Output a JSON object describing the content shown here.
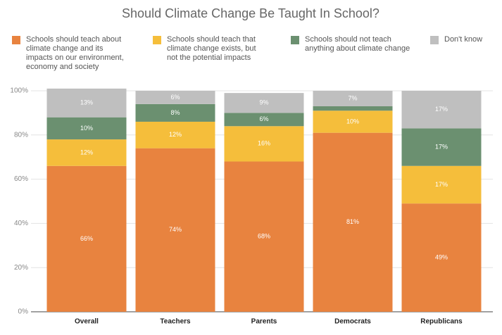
{
  "chart_data": {
    "type": "stacked_bar",
    "title": "Should Climate Change Be Taught In School?",
    "categories": [
      "Overall",
      "Teachers",
      "Parents",
      "Democrats",
      "Republicans"
    ],
    "series": [
      {
        "name": "Schools should teach about climate change and its impacts on our environment, economy and society",
        "color": "#e8833f",
        "values": [
          66,
          74,
          68,
          81,
          49
        ],
        "value_labels": [
          "66%",
          "74%",
          "68%",
          "81%",
          "49%"
        ]
      },
      {
        "name": "Schools should teach that climate change exists, but not the potential impacts",
        "color": "#f5be3b",
        "values": [
          12,
          12,
          16,
          10,
          17
        ],
        "value_labels": [
          "12%",
          "12%",
          "16%",
          "10%",
          "17%"
        ]
      },
      {
        "name": "Schools should not teach anything about climate change",
        "color": "#6b9070",
        "values": [
          10,
          8,
          6,
          2,
          17
        ],
        "value_labels": [
          "10%",
          "8%",
          "6%",
          null,
          "17%"
        ]
      },
      {
        "name": "Don't know",
        "color": "#bfbfbf",
        "values": [
          13,
          6,
          9,
          7,
          17
        ],
        "value_labels": [
          "13%",
          "6%",
          "9%",
          "7%",
          "17%"
        ]
      }
    ],
    "ylim": [
      0,
      100
    ],
    "yticks": [
      {
        "value": 0,
        "label": "0%"
      },
      {
        "value": 20,
        "label": "20%"
      },
      {
        "value": 40,
        "label": "40%"
      },
      {
        "value": 60,
        "label": "60%"
      },
      {
        "value": 80,
        "label": "80%"
      },
      {
        "value": 100,
        "label": "100%"
      }
    ],
    "grid": true
  }
}
